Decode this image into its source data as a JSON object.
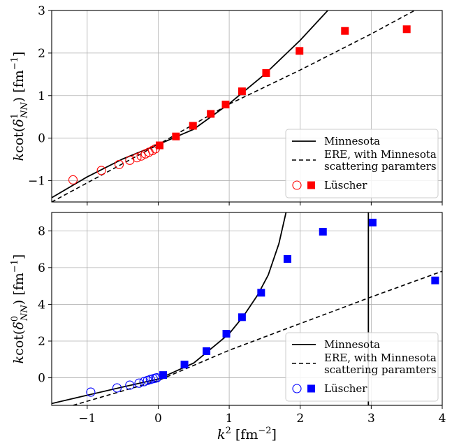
{
  "chart_data": [
    {
      "type": "scatter",
      "panel": "top",
      "xlabel": "",
      "ylabel": "k cot(δ¹_NN) [fm⁻¹]",
      "ylabel_parts": {
        "pre": "k",
        "fn": "cot(",
        "sym": "δ",
        "sup": "1",
        "sub": "NN",
        "post": ") [fm",
        "unit_sup": "−1",
        "close": "]"
      },
      "xlim": [
        -1.5,
        4.0
      ],
      "ylim": [
        -1.5,
        3.0
      ],
      "xticks": [
        -1,
        0,
        1,
        2,
        3,
        4
      ],
      "yticks": [
        -1,
        0,
        1,
        2,
        3
      ],
      "ytick_labels": [
        "−1",
        "0",
        "1",
        "2",
        "3"
      ],
      "grid": true,
      "legend_position": "bottom-right",
      "legend": [
        "Minnesota",
        "ERE, with Minnesota",
        "scattering paramters",
        "Lüscher"
      ],
      "accent_color": "#ff0000",
      "series": [
        {
          "name": "Lüscher",
          "marker": "open-circle",
          "x": [
            -1.2,
            -0.8,
            -0.55,
            -0.4,
            -0.3,
            -0.24,
            -0.18,
            -0.13,
            -0.08,
            -0.04
          ],
          "y": [
            -0.98,
            -0.76,
            -0.62,
            -0.52,
            -0.46,
            -0.42,
            -0.37,
            -0.33,
            -0.29,
            -0.25
          ]
        },
        {
          "name": "Lüscher",
          "marker": "filled-square",
          "x": [
            0.02,
            0.25,
            0.49,
            0.74,
            0.95,
            1.18,
            1.52,
            1.99,
            2.63,
            3.5
          ],
          "y": [
            -0.17,
            0.04,
            0.29,
            0.57,
            0.79,
            1.1,
            1.53,
            2.05,
            2.52,
            2.56
          ]
        }
      ],
      "curves": {
        "minnesota": {
          "x": [
            -1.5,
            -1.0,
            -0.5,
            0.0,
            0.5,
            1.0,
            1.5,
            2.0,
            2.5,
            3.0
          ],
          "y": [
            -1.4,
            -0.91,
            -0.49,
            -0.15,
            0.21,
            0.81,
            1.5,
            2.3,
            3.2,
            4.2
          ]
        },
        "ere": {
          "x": [
            -1.5,
            0.0,
            1.0,
            2.0,
            3.0,
            4.0
          ],
          "y": [
            -1.5,
            -0.15,
            0.8,
            1.6,
            2.45,
            3.35
          ]
        }
      }
    },
    {
      "type": "scatter",
      "panel": "bottom",
      "xlabel": "k² [fm⁻²]",
      "xlabel_parts": {
        "pre": "k",
        "sup": "2",
        "post": " [fm",
        "unit_sup": "−2",
        "close": "]"
      },
      "ylabel": "k cot(δ⁰_NN) [fm⁻¹]",
      "ylabel_parts": {
        "pre": "k",
        "fn": "cot(",
        "sym": "δ",
        "sup": "0",
        "sub": "NN",
        "post": ") [fm",
        "unit_sup": "−1",
        "close": "]"
      },
      "xlim": [
        -1.5,
        4.0
      ],
      "ylim": [
        -1.5,
        9.0
      ],
      "xticks": [
        -1,
        0,
        1,
        2,
        3,
        4
      ],
      "xtick_labels": [
        "−1",
        "0",
        "1",
        "2",
        "3",
        "4"
      ],
      "yticks": [
        0,
        2,
        4,
        6,
        8
      ],
      "ytick_labels": [
        "0",
        "2",
        "4",
        "6",
        "8"
      ],
      "grid": true,
      "legend_position": "bottom-right",
      "legend": [
        "Minnesota",
        "ERE, with Minnesota",
        "scattering paramters",
        "Lüscher"
      ],
      "accent_color": "#0000ff",
      "series": [
        {
          "name": "Lüscher",
          "marker": "open-circle",
          "x": [
            -0.95,
            -0.58,
            -0.4,
            -0.27,
            -0.2,
            -0.15,
            -0.11,
            -0.07,
            -0.04,
            -0.02
          ],
          "y": [
            -0.78,
            -0.55,
            -0.4,
            -0.29,
            -0.21,
            -0.14,
            -0.09,
            -0.05,
            -0.02,
            0.0
          ],
          "marker_color": "#0000ff"
        },
        {
          "name": "Lüscher",
          "marker": "filled-square",
          "x": [
            0.07,
            0.37,
            0.68,
            0.96,
            1.18,
            1.45,
            1.82,
            2.32,
            3.02,
            3.9
          ],
          "y": [
            0.15,
            0.72,
            1.45,
            2.4,
            3.3,
            4.63,
            6.47,
            7.95,
            8.45,
            5.3
          ]
        }
      ],
      "curves": {
        "minnesota": {
          "x": [
            -1.5,
            -1.0,
            -0.5,
            0.0,
            0.5,
            1.0,
            1.2,
            1.4,
            1.55,
            1.7,
            1.8
          ],
          "y": [
            -1.4,
            -0.95,
            -0.5,
            -0.07,
            0.8,
            2.4,
            3.35,
            4.5,
            5.6,
            7.3,
            9.0
          ]
        },
        "minnesota_pole_x": 2.96,
        "ere": {
          "x": [
            -1.2,
            0.0,
            1.0,
            2.0,
            3.0,
            4.0
          ],
          "y": [
            -1.5,
            -0.15,
            1.5,
            2.95,
            4.4,
            5.8
          ]
        }
      }
    }
  ]
}
